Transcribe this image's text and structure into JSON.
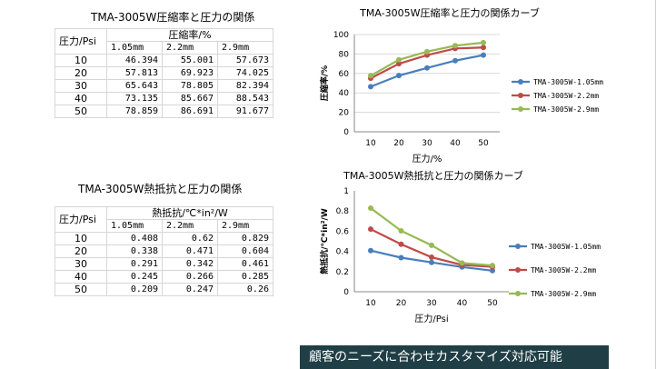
{
  "table1": {
    "title": "TMA-3005W圧縮率と圧力の関係",
    "pressure_header": "圧力/Psi",
    "value_header": "圧縮率/%",
    "thicknesses": [
      "1.05mm",
      "2.2mm",
      "2.9mm"
    ],
    "rows": [
      {
        "p": "10",
        "v": [
          "46.394",
          "55.001",
          "57.673"
        ]
      },
      {
        "p": "20",
        "v": [
          "57.813",
          "69.923",
          "74.025"
        ]
      },
      {
        "p": "30",
        "v": [
          "65.643",
          "78.805",
          "82.394"
        ]
      },
      {
        "p": "40",
        "v": [
          "73.135",
          "85.667",
          "88.543"
        ]
      },
      {
        "p": "50",
        "v": [
          "78.859",
          "86.691",
          "91.677"
        ]
      }
    ]
  },
  "table2": {
    "title": "TMA-3005W熱抵抗と圧力の関係",
    "pressure_header": "圧力/Psi",
    "value_header": "熱抵抗/℃*in²/W",
    "thicknesses": [
      "1.05mm",
      "2.2mm",
      "2.9mm"
    ],
    "rows": [
      {
        "p": "10",
        "v": [
          "0.408",
          "0.62",
          "0.829"
        ]
      },
      {
        "p": "20",
        "v": [
          "0.338",
          "0.471",
          "0.604"
        ]
      },
      {
        "p": "30",
        "v": [
          "0.291",
          "0.342",
          "0.461"
        ]
      },
      {
        "p": "40",
        "v": [
          "0.245",
          "0.266",
          "0.285"
        ]
      },
      {
        "p": "50",
        "v": [
          "0.209",
          "0.247",
          "0.26"
        ]
      }
    ]
  },
  "chart_data": [
    {
      "type": "line",
      "title": "TMA-3005W圧縮率と圧力の関係カーブ",
      "xlabel": "圧力/%",
      "ylabel": "圧縮率/%",
      "x": [
        10,
        20,
        30,
        40,
        50
      ],
      "xlim": [
        10,
        50
      ],
      "ylim": [
        0,
        100
      ],
      "yticks": [
        0,
        20,
        40,
        60,
        80,
        100
      ],
      "ytick_labels": [
        "0",
        "20",
        "40",
        "60",
        "80",
        "100"
      ],
      "grid": "horizontal",
      "legend": "right",
      "series": [
        {
          "name": "TMA-3005W-1.05mm",
          "color": "#4a7ebb",
          "values": [
            46.394,
            57.813,
            65.643,
            73.135,
            78.859
          ]
        },
        {
          "name": "TMA-3005W-2.2mm",
          "color": "#be4b48",
          "values": [
            55.001,
            69.923,
            78.805,
            85.667,
            86.691
          ]
        },
        {
          "name": "TMA-3005W-2.9mm",
          "color": "#98b954",
          "values": [
            57.673,
            74.025,
            82.394,
            88.543,
            91.677
          ]
        }
      ]
    },
    {
      "type": "line",
      "title": "TMA-3005W熱抵抗と圧力の関係カーブ",
      "xlabel": "圧力/Psi",
      "ylabel": "熱抵抗/℃*in²/W",
      "x": [
        10,
        20,
        30,
        40,
        50
      ],
      "xlim": [
        10,
        50
      ],
      "ylim": [
        0,
        1
      ],
      "yticks": [
        0,
        0.2,
        0.4,
        0.6,
        0.8,
        1
      ],
      "ytick_labels": [
        "0",
        "0.2",
        "0.4",
        "0.6",
        "0.8",
        "1"
      ],
      "grid": "none",
      "legend": "right",
      "series": [
        {
          "name": "TMA-3005W-1.05mm",
          "color": "#4a7ebb",
          "values": [
            0.408,
            0.338,
            0.291,
            0.245,
            0.209
          ]
        },
        {
          "name": "TMA-3005W-2.2mm",
          "color": "#be4b48",
          "values": [
            0.62,
            0.471,
            0.342,
            0.266,
            0.247
          ]
        },
        {
          "name": "TMA-3005W-2.9mm",
          "color": "#98b954",
          "values": [
            0.829,
            0.604,
            0.461,
            0.285,
            0.26
          ]
        }
      ]
    }
  ],
  "banner": "顧客のニーズに合わせカスタマイズ対応可能"
}
